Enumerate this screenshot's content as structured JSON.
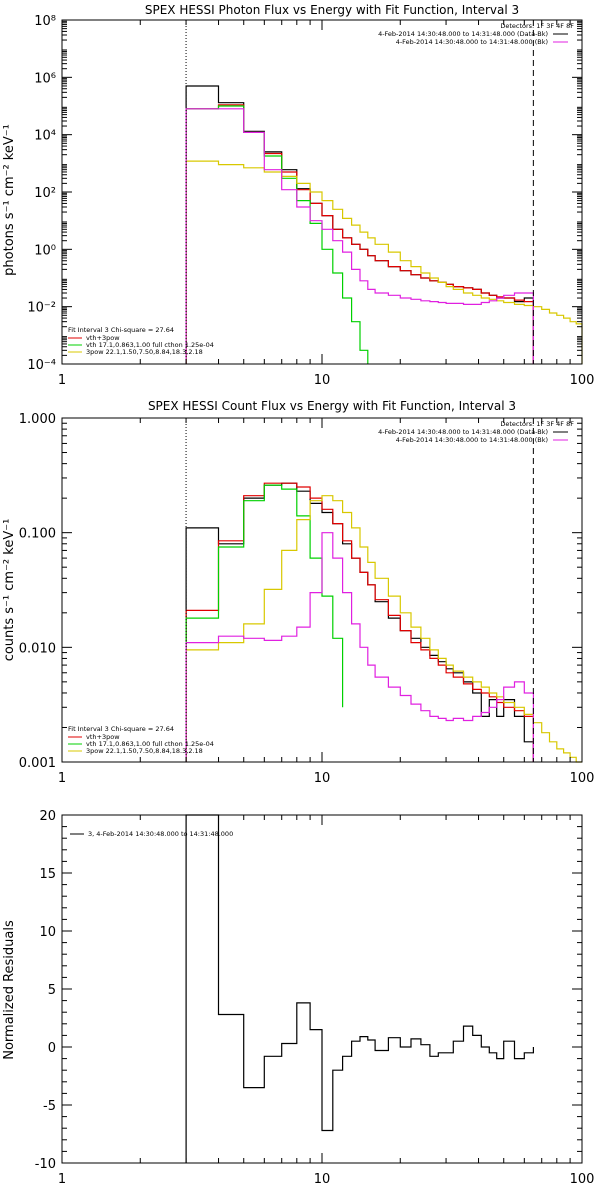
{
  "chart_data": [
    {
      "type": "line",
      "title": "SPEX HESSI Photon Flux vs Energy with Fit Function, Interval 3",
      "ylabel": "photons s⁻¹ cm⁻² keV⁻¹",
      "xlabel": "",
      "xscale": "log",
      "yscale": "log",
      "xlim": [
        1,
        100
      ],
      "ylim": [
        0.0001,
        100000000
      ],
      "x_ticks": [
        "1",
        "10",
        "100"
      ],
      "y_ticks": [
        "10⁻⁴",
        "10⁻²",
        "10⁰",
        "10²",
        "10⁴",
        "10⁶",
        "10⁸"
      ],
      "vlines": [
        {
          "x": 3,
          "style": "dotted"
        },
        {
          "x": 65,
          "style": "dashed"
        }
      ],
      "legend_top": {
        "header": "Detectors: 1F 3F 4F 8F",
        "entries": [
          {
            "text": "4-Feb-2014 14:30:48.000 to 14:31:48.000 (Data-Bk)",
            "color": "#000000"
          },
          {
            "text": "4-Feb-2014 14:30:48.000 to 14:31:48.000 (Bk)",
            "color": "#e020e0"
          }
        ]
      },
      "legend_bottom": {
        "header": "Fit Interval 3   Chi-square = 27.64",
        "entries": [
          {
            "text": "vth+3pow",
            "color": "#e00000"
          },
          {
            "text": "vth 17.1,0.863,1.00  full cthon 1.25e-04",
            "color": "#00d000"
          },
          {
            "text": "3pow 22.1,1.50,7.50,8.84,18.3,2.18",
            "color": "#d8c800"
          }
        ]
      },
      "series": [
        {
          "color": "#000000",
          "edges": [
            3,
            4,
            5,
            6,
            7,
            8,
            9,
            10,
            11,
            12,
            13,
            14,
            15,
            16,
            18,
            20,
            22,
            24,
            26,
            28,
            30,
            32,
            35,
            38,
            41,
            44,
            47,
            50,
            55,
            60,
            65
          ],
          "values": [
            500000,
            130000,
            13000,
            2500,
            600,
            130,
            40,
            15,
            5,
            2.5,
            1.5,
            1,
            0.6,
            0.4,
            0.25,
            0.18,
            0.13,
            0.1,
            0.08,
            0.07,
            0.06,
            0.05,
            0.045,
            0.04,
            0.03,
            0.025,
            0.02,
            0.02,
            0.015,
            0.02
          ]
        },
        {
          "color": "#e00000",
          "edges": [
            3,
            4,
            5,
            6,
            7,
            8,
            9,
            10,
            11,
            12,
            13,
            14,
            15,
            16,
            18,
            20,
            22,
            24,
            26,
            28,
            30,
            32,
            35,
            38,
            41,
            44,
            47,
            50,
            55,
            60,
            65
          ],
          "values": [
            80000,
            110000,
            12000,
            2200,
            500,
            120,
            40,
            15,
            5,
            2.5,
            1.5,
            1,
            0.6,
            0.4,
            0.25,
            0.18,
            0.13,
            0.1,
            0.08,
            0.07,
            0.06,
            0.05,
            0.045,
            0.04,
            0.03,
            0.025,
            0.022,
            0.02,
            0.017,
            0.015
          ]
        },
        {
          "color": "#00d000",
          "edges": [
            3,
            4,
            5,
            6,
            7,
            8,
            9,
            10,
            11,
            12,
            13,
            14,
            15
          ],
          "values": [
            80000,
            100000,
            12000,
            1800,
            300,
            50,
            8,
            1,
            0.15,
            0.02,
            0.003,
            0.0003
          ]
        },
        {
          "color": "#d8c800",
          "edges": [
            3,
            4,
            5,
            6,
            7,
            8,
            9,
            10,
            11,
            12,
            13,
            14,
            15,
            16,
            18,
            20,
            22,
            24,
            26,
            28,
            30,
            32,
            35,
            38,
            41,
            44,
            47,
            50,
            55,
            60,
            65,
            70,
            75,
            80,
            85,
            90,
            95,
            100
          ],
          "values": [
            1200,
            900,
            700,
            500,
            350,
            200,
            100,
            50,
            25,
            12,
            7,
            4,
            2.5,
            1.5,
            0.8,
            0.4,
            0.25,
            0.15,
            0.1,
            0.07,
            0.05,
            0.04,
            0.03,
            0.025,
            0.02,
            0.018,
            0.016,
            0.014,
            0.012,
            0.011,
            0.01,
            0.008,
            0.006,
            0.005,
            0.004,
            0.003,
            0.0025
          ]
        },
        {
          "color": "#e020e0",
          "edges": [
            3,
            4,
            5,
            6,
            7,
            8,
            9,
            10,
            11,
            12,
            13,
            14,
            15,
            16,
            18,
            20,
            22,
            24,
            26,
            28,
            30,
            32,
            35,
            38,
            41,
            44,
            47,
            50,
            55,
            60,
            65
          ],
          "values": [
            80000,
            80000,
            12000,
            600,
            120,
            30,
            10,
            5,
            2,
            0.8,
            0.2,
            0.08,
            0.04,
            0.03,
            0.025,
            0.02,
            0.018,
            0.016,
            0.015,
            0.014,
            0.013,
            0.013,
            0.012,
            0.012,
            0.014,
            0.016,
            0.02,
            0.025,
            0.03,
            0.03
          ]
        }
      ]
    },
    {
      "type": "line",
      "title": "SPEX HESSI Count Flux vs Energy with Fit Function, Interval 3",
      "ylabel": "counts s⁻¹ cm⁻² keV⁻¹",
      "xlabel": "",
      "xscale": "log",
      "yscale": "log",
      "xlim": [
        1,
        100
      ],
      "ylim": [
        0.001,
        1
      ],
      "x_ticks": [
        "1",
        "10",
        "100"
      ],
      "y_ticks": [
        "0.001",
        "0.010",
        "0.100",
        "1.000"
      ],
      "vlines": [
        {
          "x": 3,
          "style": "dotted"
        },
        {
          "x": 65,
          "style": "dashed"
        }
      ],
      "legend_top": {
        "header": "Detectors: 1F 3F 4F 8F",
        "entries": [
          {
            "text": "4-Feb-2014 14:30:48.000 to 14:31:48.000 (Data-Bk)",
            "color": "#000000"
          },
          {
            "text": "4-Feb-2014 14:30:48.000 to 14:31:48.000 (Bk)",
            "color": "#e020e0"
          }
        ]
      },
      "legend_bottom": {
        "header": "Fit Interval 3   Chi-square = 27.64",
        "entries": [
          {
            "text": "vth+3pow",
            "color": "#e00000"
          },
          {
            "text": "vth 17.1,0.863,1.00  full cthon 1.25e-04",
            "color": "#00d000"
          },
          {
            "text": "3pow 22.1,1.50,7.50,8.84,18.3,2.18",
            "color": "#d8c800"
          }
        ]
      },
      "series": [
        {
          "color": "#000000",
          "edges": [
            3,
            4,
            5,
            6,
            7,
            8,
            9,
            10,
            11,
            12,
            13,
            14,
            15,
            16,
            18,
            20,
            22,
            24,
            26,
            28,
            30,
            32,
            35,
            38,
            41,
            44,
            47,
            50,
            55,
            60,
            65
          ],
          "values": [
            0.11,
            0.08,
            0.2,
            0.26,
            0.27,
            0.23,
            0.18,
            0.15,
            0.12,
            0.08,
            0.06,
            0.045,
            0.035,
            0.025,
            0.018,
            0.014,
            0.012,
            0.01,
            0.0085,
            0.0075,
            0.0065,
            0.006,
            0.005,
            0.004,
            0.0025,
            0.0035,
            0.0025,
            0.0035,
            0.0025,
            0.0015
          ]
        },
        {
          "color": "#e00000",
          "edges": [
            3,
            4,
            5,
            6,
            7,
            8,
            9,
            10,
            11,
            12,
            13,
            14,
            15,
            16,
            18,
            20,
            22,
            24,
            26,
            28,
            30,
            32,
            35,
            38,
            41,
            44,
            47,
            50,
            55,
            60,
            65
          ],
          "values": [
            0.021,
            0.085,
            0.21,
            0.27,
            0.27,
            0.25,
            0.2,
            0.16,
            0.12,
            0.085,
            0.06,
            0.045,
            0.035,
            0.026,
            0.019,
            0.014,
            0.011,
            0.0095,
            0.008,
            0.007,
            0.006,
            0.0055,
            0.0048,
            0.0043,
            0.004,
            0.0037,
            0.0033,
            0.003,
            0.0028,
            0.0025
          ]
        },
        {
          "color": "#00d000",
          "edges": [
            3,
            4,
            5,
            6,
            7,
            8,
            9,
            10,
            11,
            12
          ],
          "values": [
            0.018,
            0.075,
            0.19,
            0.26,
            0.24,
            0.14,
            0.06,
            0.028,
            0.012,
            0.003
          ]
        },
        {
          "color": "#d8c800",
          "edges": [
            3,
            4,
            5,
            6,
            7,
            8,
            9,
            10,
            11,
            12,
            13,
            14,
            15,
            16,
            18,
            20,
            22,
            24,
            26,
            28,
            30,
            32,
            35,
            38,
            41,
            44,
            47,
            50,
            55,
            60,
            65,
            70,
            75,
            80,
            85,
            90,
            95,
            100
          ],
          "values": [
            0.0095,
            0.011,
            0.016,
            0.032,
            0.07,
            0.13,
            0.19,
            0.21,
            0.19,
            0.15,
            0.11,
            0.075,
            0.055,
            0.04,
            0.028,
            0.02,
            0.015,
            0.012,
            0.0095,
            0.008,
            0.007,
            0.0062,
            0.0055,
            0.005,
            0.0045,
            0.004,
            0.0037,
            0.0033,
            0.003,
            0.0026,
            0.0022,
            0.0018,
            0.0015,
            0.0013,
            0.0012,
            0.0011,
            0.001
          ]
        },
        {
          "color": "#e020e0",
          "edges": [
            3,
            4,
            5,
            6,
            7,
            8,
            9,
            10,
            11,
            12,
            13,
            14,
            15,
            16,
            18,
            20,
            22,
            24,
            26,
            28,
            30,
            32,
            35,
            38,
            41,
            44,
            47,
            50,
            55,
            60,
            65
          ],
          "values": [
            0.011,
            0.0125,
            0.012,
            0.0115,
            0.0125,
            0.015,
            0.03,
            0.1,
            0.06,
            0.03,
            0.016,
            0.01,
            0.007,
            0.0055,
            0.0045,
            0.0038,
            0.0032,
            0.0028,
            0.0025,
            0.0024,
            0.0023,
            0.0024,
            0.0023,
            0.0025,
            0.0027,
            0.003,
            0.0035,
            0.0045,
            0.005,
            0.004
          ]
        }
      ]
    },
    {
      "type": "line",
      "title": "",
      "ylabel": "Normalized Residuals",
      "xlabel": "",
      "xscale": "log",
      "yscale": "linear",
      "xlim": [
        1,
        100
      ],
      "ylim": [
        -10,
        20
      ],
      "x_ticks": [
        "1",
        "10",
        "100"
      ],
      "y_ticks": [
        "-10",
        "-5",
        "0",
        "5",
        "10",
        "15",
        "20"
      ],
      "vlines": [],
      "legend_top_left": {
        "text": "3,  4-Feb-2014 14:30:48.000 to 14:31:48.000",
        "color": "#000000"
      },
      "series": [
        {
          "color": "#000000",
          "edges": [
            3,
            4,
            5,
            6,
            7,
            8,
            9,
            10,
            11,
            12,
            13,
            14,
            15,
            16,
            18,
            20,
            22,
            24,
            26,
            28,
            30,
            32,
            35,
            38,
            41,
            44,
            47,
            50,
            55,
            60,
            65
          ],
          "values": [
            20,
            2.8,
            -3.5,
            -0.8,
            0.3,
            3.8,
            1.5,
            -7.2,
            -2,
            -0.8,
            0.5,
            0.9,
            0.6,
            -0.3,
            0.8,
            0,
            0.7,
            0.2,
            -0.8,
            -0.5,
            -0.5,
            0.5,
            1.8,
            1,
            0,
            -0.5,
            -1,
            0.5,
            -1,
            -0.5
          ]
        }
      ]
    }
  ]
}
